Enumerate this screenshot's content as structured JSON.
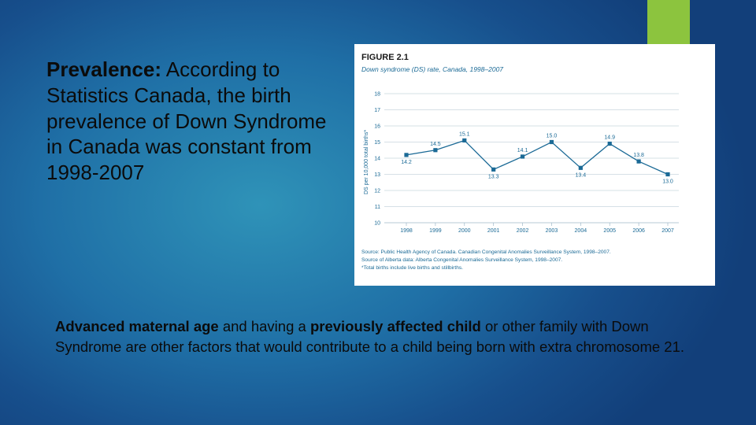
{
  "slide": {
    "intro": {
      "bold": "Prevalence:",
      "rest": " According to Statistics Canada, the birth prevalence of Down Syndrome in Canada was constant from 1998-2007"
    },
    "bottom": {
      "bold1": "Advanced maternal age",
      "text1": " and having a ",
      "bold2": "previously affected child",
      "text2": " or other family with Down Syndrome are other factors that would contribute to a child being born with extra chromosome 21."
    },
    "colors": {
      "accent": "#8cc43e",
      "line": "#1b6a96",
      "figure_title": "#1b6a96"
    }
  },
  "figure": {
    "label": "FIGURE 2.1",
    "caption": "Down syndrome (DS) rate, Canada, 1998–2007",
    "notes": [
      "Source: Public Health Agency of Canada. Canadian Congenital Anomalies Surveillance System, 1998–2007.",
      "Source of Alberta data: Alberta Congenital Anomalies Surveillance System, 1998–2007.",
      "*Total births include live births and stillbirths."
    ]
  },
  "chart_data": {
    "type": "line",
    "x": [
      "1998",
      "1999",
      "2000",
      "2001",
      "2002",
      "2003",
      "2004",
      "2005",
      "2006",
      "2007"
    ],
    "series": [
      {
        "values": [
          14.2,
          14.5,
          15.1,
          13.3,
          14.1,
          15.0,
          13.4,
          14.9,
          13.8,
          13.0
        ]
      }
    ],
    "data_labels": [
      "14.2",
      "14.5",
      "15.1",
      "13.3",
      "14.1",
      "15.0",
      "13.4",
      "14.9",
      "13.8",
      "13.0"
    ],
    "ylabel": "DS per 10,000 total births*",
    "xlabel": "",
    "ylim": [
      10,
      18
    ],
    "yticks": [
      "10",
      "11",
      "12",
      "13",
      "14",
      "15",
      "16",
      "17",
      "18"
    ],
    "grid": true
  }
}
